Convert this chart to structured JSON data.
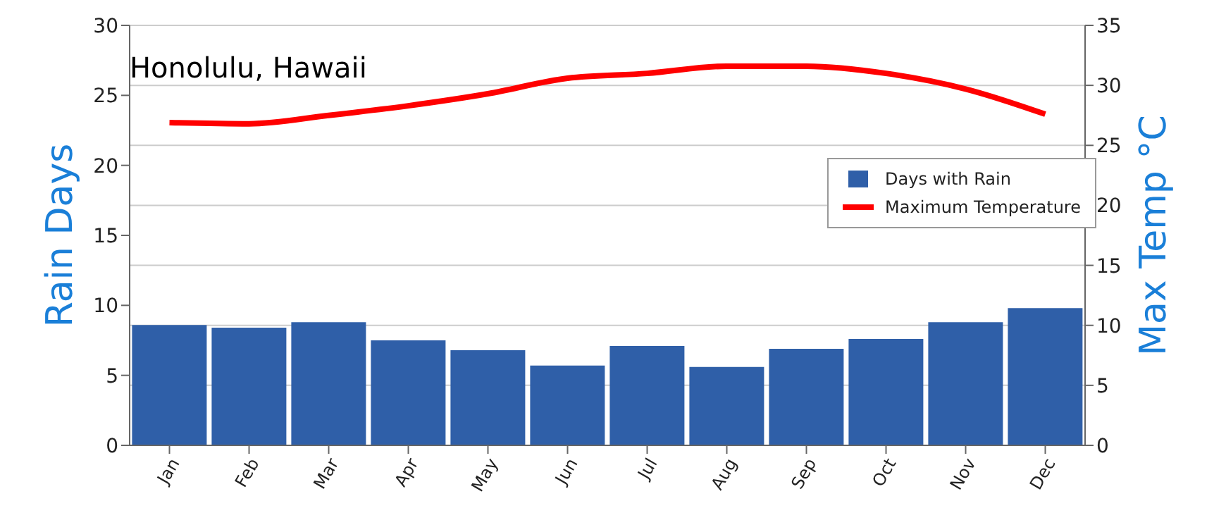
{
  "chart_data": {
    "type": "bar",
    "title": "Honolulu, Hawaii",
    "ylabel": "Rain Days",
    "y2label": "Max Temp °C",
    "categories": [
      "Jan",
      "Feb",
      "Mar",
      "Apr",
      "May",
      "Jun",
      "Jul",
      "Aug",
      "Sep",
      "Oct",
      "Nov",
      "Dec"
    ],
    "series": [
      {
        "name": "Days with Rain",
        "color": "#2f5fa8",
        "values": [
          8.6,
          8.4,
          8.8,
          7.5,
          6.8,
          5.7,
          7.1,
          5.6,
          6.9,
          7.6,
          8.8,
          9.8
        ]
      },
      {
        "name": "Maximum Temperature",
        "type": "line",
        "axis": "y2",
        "color": "#ff0000",
        "values": [
          26.9,
          26.8,
          27.5,
          28.3,
          29.3,
          30.6,
          31.0,
          31.6,
          31.6,
          31.0,
          29.7,
          27.6
        ]
      }
    ],
    "ylim": [
      0,
      30
    ],
    "yticks": [
      0,
      5,
      10,
      15,
      20,
      25,
      30
    ],
    "y2lim": [
      0,
      35
    ],
    "y2ticks": [
      0,
      5,
      10,
      15,
      20,
      25,
      30,
      35
    ],
    "grid": true,
    "legend": "top right",
    "marker": "none",
    "line_style": "solid"
  }
}
